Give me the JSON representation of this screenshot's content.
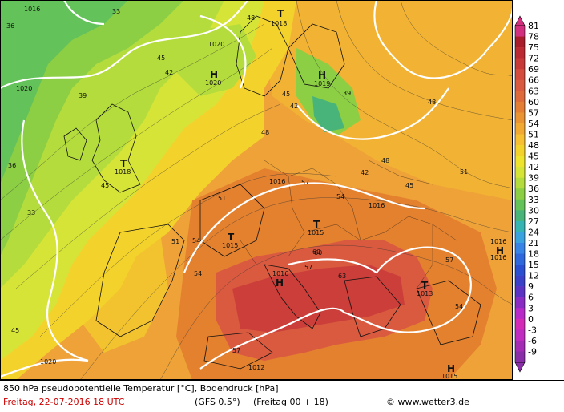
{
  "footer": {
    "caption": "850 hPa pseudopotentielle Temperatur [°C], Bodendruck [hPa]",
    "date": "Freitag, 22-07-2016  18 UTC",
    "model": "(GFS 0.5°)",
    "run": "(Freitag 00 + 18)",
    "credit": "© www.wetter3.de"
  },
  "legend": {
    "values": [
      "81",
      "78",
      "75",
      "72",
      "69",
      "66",
      "63",
      "60",
      "57",
      "54",
      "51",
      "48",
      "45",
      "42",
      "39",
      "36",
      "33",
      "30",
      "27",
      "24",
      "21",
      "18",
      "15",
      "12",
      "9",
      "6",
      "3",
      "0",
      "-3",
      "-6",
      "-9"
    ],
    "colors": [
      "#d2307e",
      "#a81c2c",
      "#bb2a32",
      "#c83a38",
      "#d34c3e",
      "#da5a40",
      "#de6a3c",
      "#e37e34",
      "#ea9332",
      "#f1a931",
      "#f6c032",
      "#f4d22c",
      "#eee42e",
      "#d6e438",
      "#b4dc3c",
      "#8ccf44",
      "#64c25a",
      "#48b47a",
      "#36b4b4",
      "#3aa2de",
      "#3784e6",
      "#2f68dc",
      "#2a4fd0",
      "#3a40c8",
      "#5b33c4",
      "#8a2cc4",
      "#b82ac8",
      "#d42ab8",
      "#c02cc0",
      "#a42cb4",
      "#8a2ea8"
    ]
  },
  "pressure_centers": [
    {
      "type": "T",
      "value": "1018"
    },
    {
      "type": "H",
      "value": "1020"
    },
    {
      "type": "H",
      "value": "1019"
    },
    {
      "type": "T",
      "value": "1018"
    },
    {
      "type": "T",
      "value": "1015"
    },
    {
      "type": "T",
      "value": "1015"
    },
    {
      "type": "H",
      "value": "1016"
    },
    {
      "type": "T",
      "value": "1013"
    },
    {
      "type": "H",
      "value": "1016"
    },
    {
      "type": "H",
      "value": "1015"
    }
  ],
  "isobar_labels": [
    "1016",
    "1020",
    "1020",
    "1016",
    "1016",
    "1016",
    "1012",
    "1020"
  ],
  "isotherm_labels": [
    "36",
    "33",
    "45",
    "42",
    "39",
    "48",
    "45",
    "42",
    "48",
    "45",
    "51",
    "54",
    "57",
    "60",
    "63",
    "57",
    "54",
    "51",
    "48",
    "45",
    "42",
    "39",
    "36",
    "33",
    "54",
    "57",
    "60",
    "57",
    "54",
    "51",
    "48",
    "45"
  ]
}
